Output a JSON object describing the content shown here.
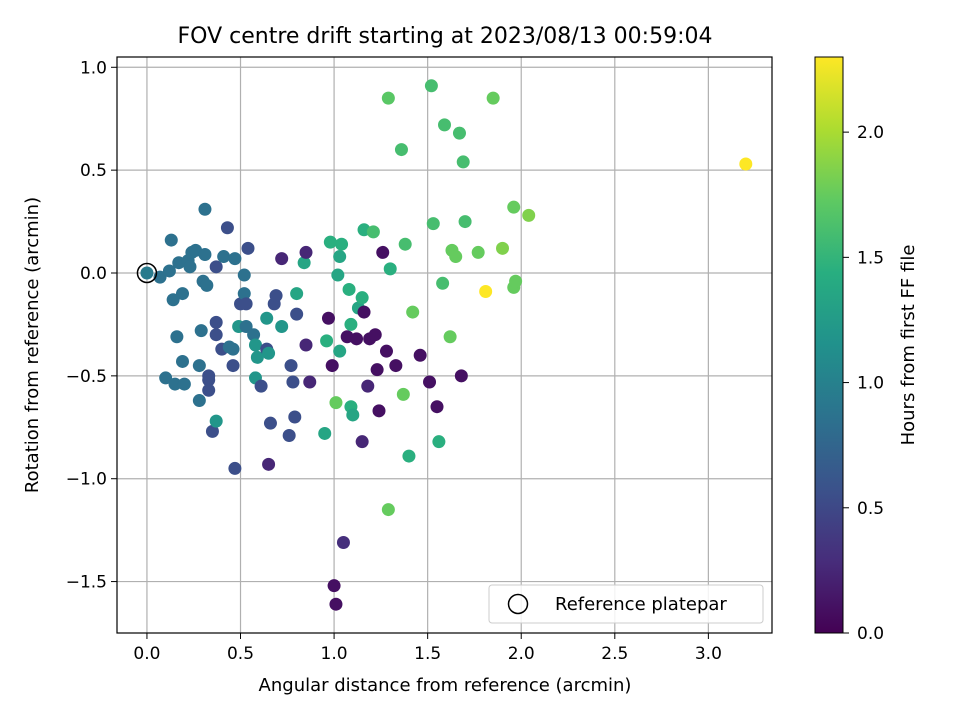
{
  "chart_data": {
    "type": "scatter",
    "title": "FOV centre drift starting at 2023/08/13 00:59:04",
    "xlabel": "Angular distance from reference (arcmin)",
    "ylabel": "Rotation from reference (arcmin)",
    "xlim": [
      -0.16,
      3.34
    ],
    "ylim": [
      -1.75,
      1.05
    ],
    "xticks": [
      0.0,
      0.5,
      1.0,
      1.5,
      2.0,
      2.5,
      3.0
    ],
    "xtick_labels": [
      "0.0",
      "0.5",
      "1.0",
      "1.5",
      "2.0",
      "2.5",
      "3.0"
    ],
    "yticks": [
      1.0,
      0.5,
      0.0,
      -0.5,
      -1.0,
      -1.5
    ],
    "ytick_labels": [
      "1.0",
      "0.5",
      "0.0",
      "−0.5",
      "−1.0",
      "−1.5"
    ],
    "grid": true,
    "colorbar": {
      "label": "Hours from first FF file",
      "range": [
        0.0,
        2.3
      ],
      "ticks": [
        0.0,
        0.5,
        1.0,
        1.5,
        2.0
      ],
      "tick_labels": [
        "0.0",
        "0.5",
        "1.0",
        "1.5",
        "2.0"
      ],
      "colormap": "viridis"
    },
    "legend": {
      "position": "lower-right",
      "entries": [
        "Reference platepar"
      ]
    },
    "reference": {
      "x": 0.0,
      "y": 0.0
    },
    "points": [
      {
        "x": 0.0,
        "y": 0.0,
        "hours": 0.95
      },
      {
        "x": 0.07,
        "y": -0.02,
        "hours": 0.85
      },
      {
        "x": 0.12,
        "y": 0.01,
        "hours": 0.85
      },
      {
        "x": 0.13,
        "y": 0.16,
        "hours": 0.85
      },
      {
        "x": 0.17,
        "y": 0.05,
        "hours": 0.85
      },
      {
        "x": 0.19,
        "y": -0.1,
        "hours": 0.85
      },
      {
        "x": 0.22,
        "y": 0.06,
        "hours": 0.85
      },
      {
        "x": 0.24,
        "y": 0.1,
        "hours": 0.85
      },
      {
        "x": 0.26,
        "y": 0.11,
        "hours": 0.85
      },
      {
        "x": 0.23,
        "y": 0.03,
        "hours": 0.85
      },
      {
        "x": 0.14,
        "y": -0.13,
        "hours": 0.85
      },
      {
        "x": 0.16,
        "y": -0.31,
        "hours": 0.85
      },
      {
        "x": 0.19,
        "y": -0.43,
        "hours": 0.85
      },
      {
        "x": 0.1,
        "y": -0.51,
        "hours": 0.85
      },
      {
        "x": 0.15,
        "y": -0.54,
        "hours": 0.85
      },
      {
        "x": 0.2,
        "y": -0.54,
        "hours": 0.85
      },
      {
        "x": 0.28,
        "y": -0.45,
        "hours": 0.85
      },
      {
        "x": 0.28,
        "y": -0.62,
        "hours": 0.85
      },
      {
        "x": 0.29,
        "y": -0.28,
        "hours": 0.85
      },
      {
        "x": 0.3,
        "y": -0.04,
        "hours": 0.85
      },
      {
        "x": 0.31,
        "y": 0.31,
        "hours": 0.85
      },
      {
        "x": 0.31,
        "y": 0.09,
        "hours": 0.85
      },
      {
        "x": 0.32,
        "y": -0.06,
        "hours": 0.85
      },
      {
        "x": 0.33,
        "y": -0.5,
        "hours": 0.55
      },
      {
        "x": 0.33,
        "y": -0.52,
        "hours": 0.55
      },
      {
        "x": 0.33,
        "y": -0.57,
        "hours": 0.55
      },
      {
        "x": 0.35,
        "y": -0.77,
        "hours": 0.55
      },
      {
        "x": 0.37,
        "y": -0.72,
        "hours": 1.2
      },
      {
        "x": 0.37,
        "y": -0.24,
        "hours": 0.55
      },
      {
        "x": 0.37,
        "y": -0.3,
        "hours": 0.55
      },
      {
        "x": 0.37,
        "y": 0.03,
        "hours": 0.55
      },
      {
        "x": 0.4,
        "y": -0.37,
        "hours": 0.55
      },
      {
        "x": 0.41,
        "y": 0.08,
        "hours": 0.85
      },
      {
        "x": 0.43,
        "y": 0.22,
        "hours": 0.55
      },
      {
        "x": 0.44,
        "y": -0.36,
        "hours": 0.85
      },
      {
        "x": 0.46,
        "y": -0.37,
        "hours": 0.85
      },
      {
        "x": 0.46,
        "y": -0.45,
        "hours": 0.55
      },
      {
        "x": 0.47,
        "y": -0.95,
        "hours": 0.55
      },
      {
        "x": 0.47,
        "y": 0.07,
        "hours": 0.85
      },
      {
        "x": 0.49,
        "y": -0.26,
        "hours": 1.2
      },
      {
        "x": 0.5,
        "y": -0.15,
        "hours": 0.55
      },
      {
        "x": 0.52,
        "y": -0.01,
        "hours": 0.85
      },
      {
        "x": 0.52,
        "y": -0.1,
        "hours": 0.85
      },
      {
        "x": 0.53,
        "y": -0.15,
        "hours": 0.55
      },
      {
        "x": 0.53,
        "y": -0.26,
        "hours": 0.85
      },
      {
        "x": 0.54,
        "y": 0.12,
        "hours": 0.55
      },
      {
        "x": 0.57,
        "y": -0.3,
        "hours": 0.85
      },
      {
        "x": 0.58,
        "y": -0.51,
        "hours": 1.2
      },
      {
        "x": 0.58,
        "y": -0.35,
        "hours": 1.2
      },
      {
        "x": 0.59,
        "y": -0.41,
        "hours": 1.2
      },
      {
        "x": 0.61,
        "y": -0.55,
        "hours": 0.55
      },
      {
        "x": 0.64,
        "y": -0.22,
        "hours": 1.2
      },
      {
        "x": 0.64,
        "y": -0.37,
        "hours": 0.55
      },
      {
        "x": 0.65,
        "y": -0.39,
        "hours": 1.2
      },
      {
        "x": 0.65,
        "y": -0.93,
        "hours": 0.25
      },
      {
        "x": 0.66,
        "y": -0.73,
        "hours": 0.55
      },
      {
        "x": 0.68,
        "y": -0.15,
        "hours": 0.55
      },
      {
        "x": 0.69,
        "y": -0.11,
        "hours": 0.55
      },
      {
        "x": 0.72,
        "y": -0.26,
        "hours": 1.2
      },
      {
        "x": 0.72,
        "y": 0.07,
        "hours": 0.25
      },
      {
        "x": 0.76,
        "y": -0.79,
        "hours": 0.55
      },
      {
        "x": 0.77,
        "y": -0.45,
        "hours": 0.55
      },
      {
        "x": 0.78,
        "y": -0.53,
        "hours": 0.55
      },
      {
        "x": 0.79,
        "y": -0.7,
        "hours": 0.55
      },
      {
        "x": 0.8,
        "y": -0.2,
        "hours": 0.55
      },
      {
        "x": 0.8,
        "y": -0.1,
        "hours": 1.35
      },
      {
        "x": 0.84,
        "y": 0.05,
        "hours": 1.35
      },
      {
        "x": 0.85,
        "y": -0.35,
        "hours": 0.25
      },
      {
        "x": 0.85,
        "y": 0.1,
        "hours": 0.25
      },
      {
        "x": 0.87,
        "y": -0.53,
        "hours": 0.25
      },
      {
        "x": 0.95,
        "y": -0.78,
        "hours": 1.35
      },
      {
        "x": 0.96,
        "y": -0.33,
        "hours": 1.45
      },
      {
        "x": 0.97,
        "y": -0.22,
        "hours": 0.1
      },
      {
        "x": 0.98,
        "y": 0.15,
        "hours": 1.45
      },
      {
        "x": 0.99,
        "y": -0.45,
        "hours": 0.1
      },
      {
        "x": 1.0,
        "y": -1.52,
        "hours": 0.1
      },
      {
        "x": 1.01,
        "y": -1.61,
        "hours": 0.1
      },
      {
        "x": 1.01,
        "y": -0.63,
        "hours": 1.75
      },
      {
        "x": 1.02,
        "y": -0.01,
        "hours": 1.35
      },
      {
        "x": 1.03,
        "y": -0.38,
        "hours": 1.35
      },
      {
        "x": 1.03,
        "y": 0.08,
        "hours": 1.35
      },
      {
        "x": 1.04,
        "y": 0.14,
        "hours": 1.45
      },
      {
        "x": 1.05,
        "y": -1.31,
        "hours": 0.3
      },
      {
        "x": 1.07,
        "y": -0.31,
        "hours": 0.1
      },
      {
        "x": 1.08,
        "y": -0.08,
        "hours": 1.45
      },
      {
        "x": 1.09,
        "y": -0.25,
        "hours": 1.45
      },
      {
        "x": 1.09,
        "y": -0.65,
        "hours": 1.45
      },
      {
        "x": 1.1,
        "y": -0.69,
        "hours": 1.35
      },
      {
        "x": 1.12,
        "y": -0.32,
        "hours": 0.1
      },
      {
        "x": 1.13,
        "y": -0.17,
        "hours": 1.35
      },
      {
        "x": 1.15,
        "y": -0.82,
        "hours": 0.25
      },
      {
        "x": 1.15,
        "y": -0.12,
        "hours": 1.45
      },
      {
        "x": 1.16,
        "y": -0.19,
        "hours": 0.1
      },
      {
        "x": 1.16,
        "y": 0.21,
        "hours": 1.45
      },
      {
        "x": 1.18,
        "y": -0.55,
        "hours": 0.25
      },
      {
        "x": 1.19,
        "y": -0.32,
        "hours": 0.1
      },
      {
        "x": 1.21,
        "y": 0.2,
        "hours": 1.6
      },
      {
        "x": 1.22,
        "y": -0.3,
        "hours": 0.1
      },
      {
        "x": 1.23,
        "y": -0.47,
        "hours": 0.1
      },
      {
        "x": 1.24,
        "y": -0.67,
        "hours": 0.1
      },
      {
        "x": 1.26,
        "y": 0.1,
        "hours": 0.1
      },
      {
        "x": 1.28,
        "y": -0.38,
        "hours": 0.1
      },
      {
        "x": 1.29,
        "y": 0.85,
        "hours": 1.7
      },
      {
        "x": 1.29,
        "y": -1.15,
        "hours": 1.75
      },
      {
        "x": 1.3,
        "y": 0.02,
        "hours": 1.45
      },
      {
        "x": 1.33,
        "y": -0.45,
        "hours": 0.1
      },
      {
        "x": 1.36,
        "y": 0.6,
        "hours": 1.6
      },
      {
        "x": 1.37,
        "y": -0.59,
        "hours": 1.75
      },
      {
        "x": 1.38,
        "y": 0.14,
        "hours": 1.6
      },
      {
        "x": 1.4,
        "y": -0.89,
        "hours": 1.45
      },
      {
        "x": 1.42,
        "y": -0.19,
        "hours": 1.75
      },
      {
        "x": 1.46,
        "y": -0.4,
        "hours": 0.1
      },
      {
        "x": 1.51,
        "y": -0.53,
        "hours": 0.1
      },
      {
        "x": 1.52,
        "y": 0.91,
        "hours": 1.6
      },
      {
        "x": 1.53,
        "y": 0.24,
        "hours": 1.6
      },
      {
        "x": 1.55,
        "y": -0.65,
        "hours": 0.1
      },
      {
        "x": 1.56,
        "y": -0.82,
        "hours": 1.45
      },
      {
        "x": 1.58,
        "y": -0.05,
        "hours": 1.6
      },
      {
        "x": 1.59,
        "y": 0.72,
        "hours": 1.6
      },
      {
        "x": 1.62,
        "y": -0.31,
        "hours": 1.75
      },
      {
        "x": 1.63,
        "y": 0.11,
        "hours": 1.75
      },
      {
        "x": 1.65,
        "y": 0.08,
        "hours": 1.75
      },
      {
        "x": 1.67,
        "y": 0.68,
        "hours": 1.6
      },
      {
        "x": 1.68,
        "y": -0.5,
        "hours": 0.1
      },
      {
        "x": 1.69,
        "y": 0.54,
        "hours": 1.6
      },
      {
        "x": 1.7,
        "y": 0.25,
        "hours": 1.6
      },
      {
        "x": 1.77,
        "y": 0.1,
        "hours": 1.75
      },
      {
        "x": 1.81,
        "y": -0.09,
        "hours": 2.3
      },
      {
        "x": 1.85,
        "y": 0.85,
        "hours": 1.75
      },
      {
        "x": 1.9,
        "y": 0.12,
        "hours": 1.85
      },
      {
        "x": 1.96,
        "y": 0.32,
        "hours": 1.75
      },
      {
        "x": 1.96,
        "y": -0.07,
        "hours": 1.75
      },
      {
        "x": 1.97,
        "y": -0.04,
        "hours": 1.75
      },
      {
        "x": 2.04,
        "y": 0.28,
        "hours": 1.85
      },
      {
        "x": 3.2,
        "y": 0.53,
        "hours": 2.3
      }
    ]
  }
}
